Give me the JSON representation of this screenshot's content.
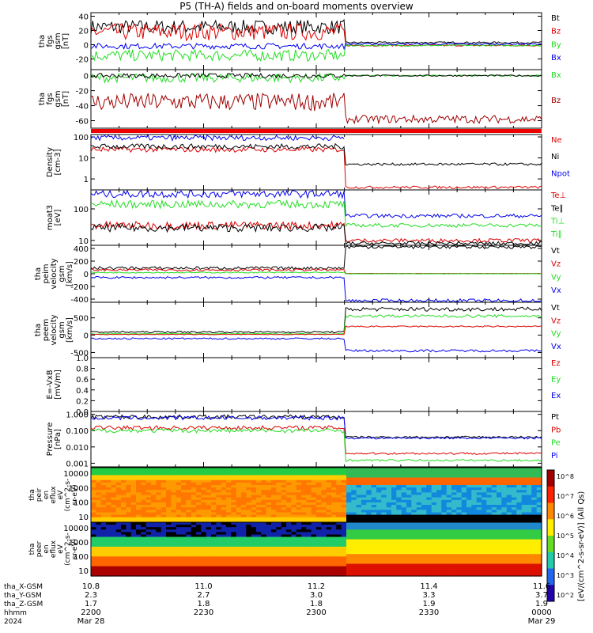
{
  "title": "P5 (TH-A) fields and on-board moments overview",
  "colors": {
    "black": "#000000",
    "red": "#dd0000",
    "green": "#22dd22",
    "blue": "#0000ee",
    "darkred": "#a00000"
  },
  "chart_data": {
    "type": "line",
    "x_range": [
      10.8,
      11.6
    ],
    "x_ticks": [
      10.8,
      11.0,
      11.2,
      11.4,
      11.6
    ],
    "x_tick_labels": [
      "10.8",
      "11.0",
      "11.2",
      "11.4",
      "11.6"
    ],
    "transition_x": 11.25,
    "panels": [
      {
        "id": "fgs_gsm",
        "ylabel": [
          "tha",
          "fgs",
          "gsm",
          "[nT]"
        ],
        "yticks": [
          "40",
          "20",
          "0",
          "-20"
        ],
        "ytick_values": [
          40,
          20,
          0,
          -20
        ],
        "ylim": [
          -35,
          45
        ],
        "legend": [
          {
            "name": "Bt",
            "color": "black"
          },
          {
            "name": "Bz",
            "color": "red"
          },
          {
            "name": "By",
            "color": "green"
          },
          {
            "name": "Bx",
            "color": "blue"
          }
        ],
        "series": [
          {
            "name": "Bt",
            "color": "black",
            "before": 25,
            "noise": 10,
            "after": 3
          },
          {
            "name": "Bz",
            "color": "red",
            "before": 18,
            "noise": 12,
            "after": -1
          },
          {
            "name": "By",
            "color": "green",
            "before": -15,
            "noise": 8,
            "after": -1
          },
          {
            "name": "Bx",
            "color": "blue",
            "before": -2,
            "noise": 4,
            "after": 1
          }
        ]
      },
      {
        "id": "fgs_gsm2",
        "ylabel": [
          "tha",
          "fgs",
          "gsm",
          "[nT]"
        ],
        "yticks": [
          "0",
          "-20",
          "-40",
          "-60"
        ],
        "ytick_values": [
          0,
          -20,
          -40,
          -60
        ],
        "ylim": [
          -70,
          8
        ],
        "legend": [
          {
            "name": "Bx",
            "color": "green"
          },
          {
            "name": "Bz",
            "color": "darkred"
          }
        ],
        "series": [
          {
            "name": "Bx",
            "color": "green",
            "before": -3,
            "noise": 6,
            "after": 0
          },
          {
            "name": "Bx2",
            "color": "black",
            "before": 0,
            "noise": 3,
            "after": 0
          },
          {
            "name": "Bz",
            "color": "darkred",
            "before": -35,
            "noise": 12,
            "after": -58
          }
        ]
      },
      {
        "id": "density",
        "ylabel": [
          "Density",
          "[cm-3]"
        ],
        "yticks": [
          "100",
          "10",
          "1"
        ],
        "ytick_values": [
          100,
          10,
          1
        ],
        "ylim_log": [
          0.3,
          130
        ],
        "legend": [
          {
            "name": "Ne",
            "color": "red"
          },
          {
            "name": "Ni",
            "color": "black"
          },
          {
            "name": "Npot",
            "color": "blue"
          }
        ],
        "series": [
          {
            "name": "Ne",
            "color": "red",
            "before": 25,
            "after": 0.4
          },
          {
            "name": "Ni",
            "color": "black",
            "before": 35,
            "after": 5
          },
          {
            "name": "Npot",
            "color": "blue",
            "before": 90,
            "after": null
          }
        ]
      },
      {
        "id": "temp",
        "ylabel": [
          "moat3",
          "[eV]"
        ],
        "yticks": [
          "100",
          "10"
        ],
        "ytick_values": [
          100,
          10
        ],
        "ylim_log": [
          7,
          400
        ],
        "legend": [
          {
            "name": "Te⊥",
            "color": "red"
          },
          {
            "name": "Te∥",
            "color": "black"
          },
          {
            "name": "Ti⊥",
            "color": "green"
          },
          {
            "name": "Ti∥",
            "color": "green"
          }
        ],
        "series": [
          {
            "name": "Te",
            "color": "blue",
            "before": 300,
            "after": 60
          },
          {
            "name": "Ti",
            "color": "green",
            "before": 140,
            "after": 30
          },
          {
            "name": "Te⊥",
            "color": "red",
            "before": 30,
            "after": 10
          },
          {
            "name": "Te∥",
            "color": "black",
            "before": 25,
            "after": 8
          }
        ]
      },
      {
        "id": "peim",
        "ylabel": [
          "tha",
          "peim",
          "velocity",
          "gsm",
          "[km/s]"
        ],
        "yticks": [
          "400",
          "200",
          "0",
          "-200",
          "-400"
        ],
        "ytick_values": [
          400,
          200,
          0,
          -200,
          -400
        ],
        "ylim": [
          -450,
          450
        ],
        "legend": [
          {
            "name": "Vt",
            "color": "black"
          },
          {
            "name": "Vz",
            "color": "red"
          },
          {
            "name": "Vy",
            "color": "green"
          },
          {
            "name": "Vx",
            "color": "blue"
          }
        ],
        "series": [
          {
            "name": "Vt",
            "color": "black",
            "before": 90,
            "after": 430
          },
          {
            "name": "Vz",
            "color": "red",
            "before": 60,
            "after": 5
          },
          {
            "name": "Vy",
            "color": "green",
            "before": 20,
            "after": 0
          },
          {
            "name": "Vx",
            "color": "blue",
            "before": -60,
            "after": -430
          }
        ]
      },
      {
        "id": "peem",
        "ylabel": [
          "tha",
          "peem",
          "velocity",
          "gsm",
          "[km/s]"
        ],
        "yticks": [
          "500",
          "0",
          "-500"
        ],
        "ytick_values": [
          500,
          0,
          -500
        ],
        "ylim": [
          -650,
          950
        ],
        "legend": [
          {
            "name": "Vt",
            "color": "black"
          },
          {
            "name": "Vz",
            "color": "red"
          },
          {
            "name": "Vy",
            "color": "green"
          },
          {
            "name": "Vx",
            "color": "blue"
          }
        ],
        "series": [
          {
            "name": "Vt",
            "color": "black",
            "before": 90,
            "after": 750
          },
          {
            "name": "Vy",
            "color": "green",
            "before": 40,
            "after": 550
          },
          {
            "name": "Vz",
            "color": "red",
            "before": 20,
            "after": 250
          },
          {
            "name": "Vx",
            "color": "blue",
            "before": -100,
            "after": -450
          }
        ]
      },
      {
        "id": "efield",
        "ylabel": [
          "E=-VxB",
          "[mV/m]"
        ],
        "yticks": [
          "1.0",
          "0.8",
          "0.6",
          "0.4",
          "0.2",
          "0.0"
        ],
        "ytick_values": [
          1.0,
          0.8,
          0.6,
          0.4,
          0.2,
          0.0
        ],
        "ylim": [
          0,
          1
        ],
        "legend": [
          {
            "name": "Ez",
            "color": "red"
          },
          {
            "name": "Ey",
            "color": "green"
          },
          {
            "name": "Ex",
            "color": "blue"
          }
        ],
        "series": []
      },
      {
        "id": "pressure",
        "ylabel": [
          "Pressure",
          "[nPa]"
        ],
        "yticks": [
          "1.000",
          "0.100",
          "0.010",
          "0.001"
        ],
        "ytick_values": [
          1,
          0.1,
          0.01,
          0.001
        ],
        "ylim_log": [
          0.0006,
          1.5
        ],
        "legend": [
          {
            "name": "Pt",
            "color": "black"
          },
          {
            "name": "Pb",
            "color": "red"
          },
          {
            "name": "Pe",
            "color": "green"
          },
          {
            "name": "Pi",
            "color": "blue"
          }
        ],
        "series": [
          {
            "name": "Pt",
            "color": "black",
            "before": 0.7,
            "after": 0.04
          },
          {
            "name": "Pi",
            "color": "blue",
            "before": 0.6,
            "after": 0.035
          },
          {
            "name": "Pb",
            "color": "red",
            "before": 0.15,
            "after": 0.004
          },
          {
            "name": "Pe",
            "color": "green",
            "before": 0.1,
            "after": 0.0015
          }
        ]
      }
    ],
    "spectrograms": [
      {
        "id": "peir",
        "ylabel": [
          "tha",
          "peir",
          "en",
          "eflux",
          "eV",
          "(cm^2-s-",
          "sr-eV)"
        ],
        "yticks": [
          "10000",
          "1000",
          "100",
          "10"
        ]
      },
      {
        "id": "peer",
        "ylabel": [
          "tha",
          "peer",
          "en",
          "eflux",
          "eV",
          "(cm^2-s-",
          "sr-eV)"
        ],
        "yticks": [
          "10000",
          "1000",
          "100",
          "10"
        ]
      }
    ],
    "colorbar": {
      "labels": [
        "10^8",
        "10^7",
        "10^6",
        "10^5",
        "10^4",
        "10^3",
        "10^2"
      ],
      "label": "[eV/(cm^2-s-sr-eV)] (All Qs)"
    },
    "ephemeris": {
      "row_labels": [
        "tha_X-GSM",
        "tha_Y-GSM",
        "tha_Z-GSM",
        "hhmm",
        "2024"
      ],
      "columns": [
        {
          "x": "10.8",
          "y": "2.3",
          "z": "1.7",
          "hhmm": "2200",
          "date": "Mar 28"
        },
        {
          "x": "11.0",
          "y": "2.7",
          "z": "1.8",
          "hhmm": "2230",
          "date": ""
        },
        {
          "x": "11.2",
          "y": "3.0",
          "z": "1.8",
          "hhmm": "2300",
          "date": ""
        },
        {
          "x": "11.4",
          "y": "3.3",
          "z": "1.9",
          "hhmm": "2330",
          "date": ""
        },
        {
          "x": "11.6",
          "y": "3.7",
          "z": "1.9",
          "hhmm": "0000",
          "date": "Mar 29"
        }
      ]
    }
  }
}
